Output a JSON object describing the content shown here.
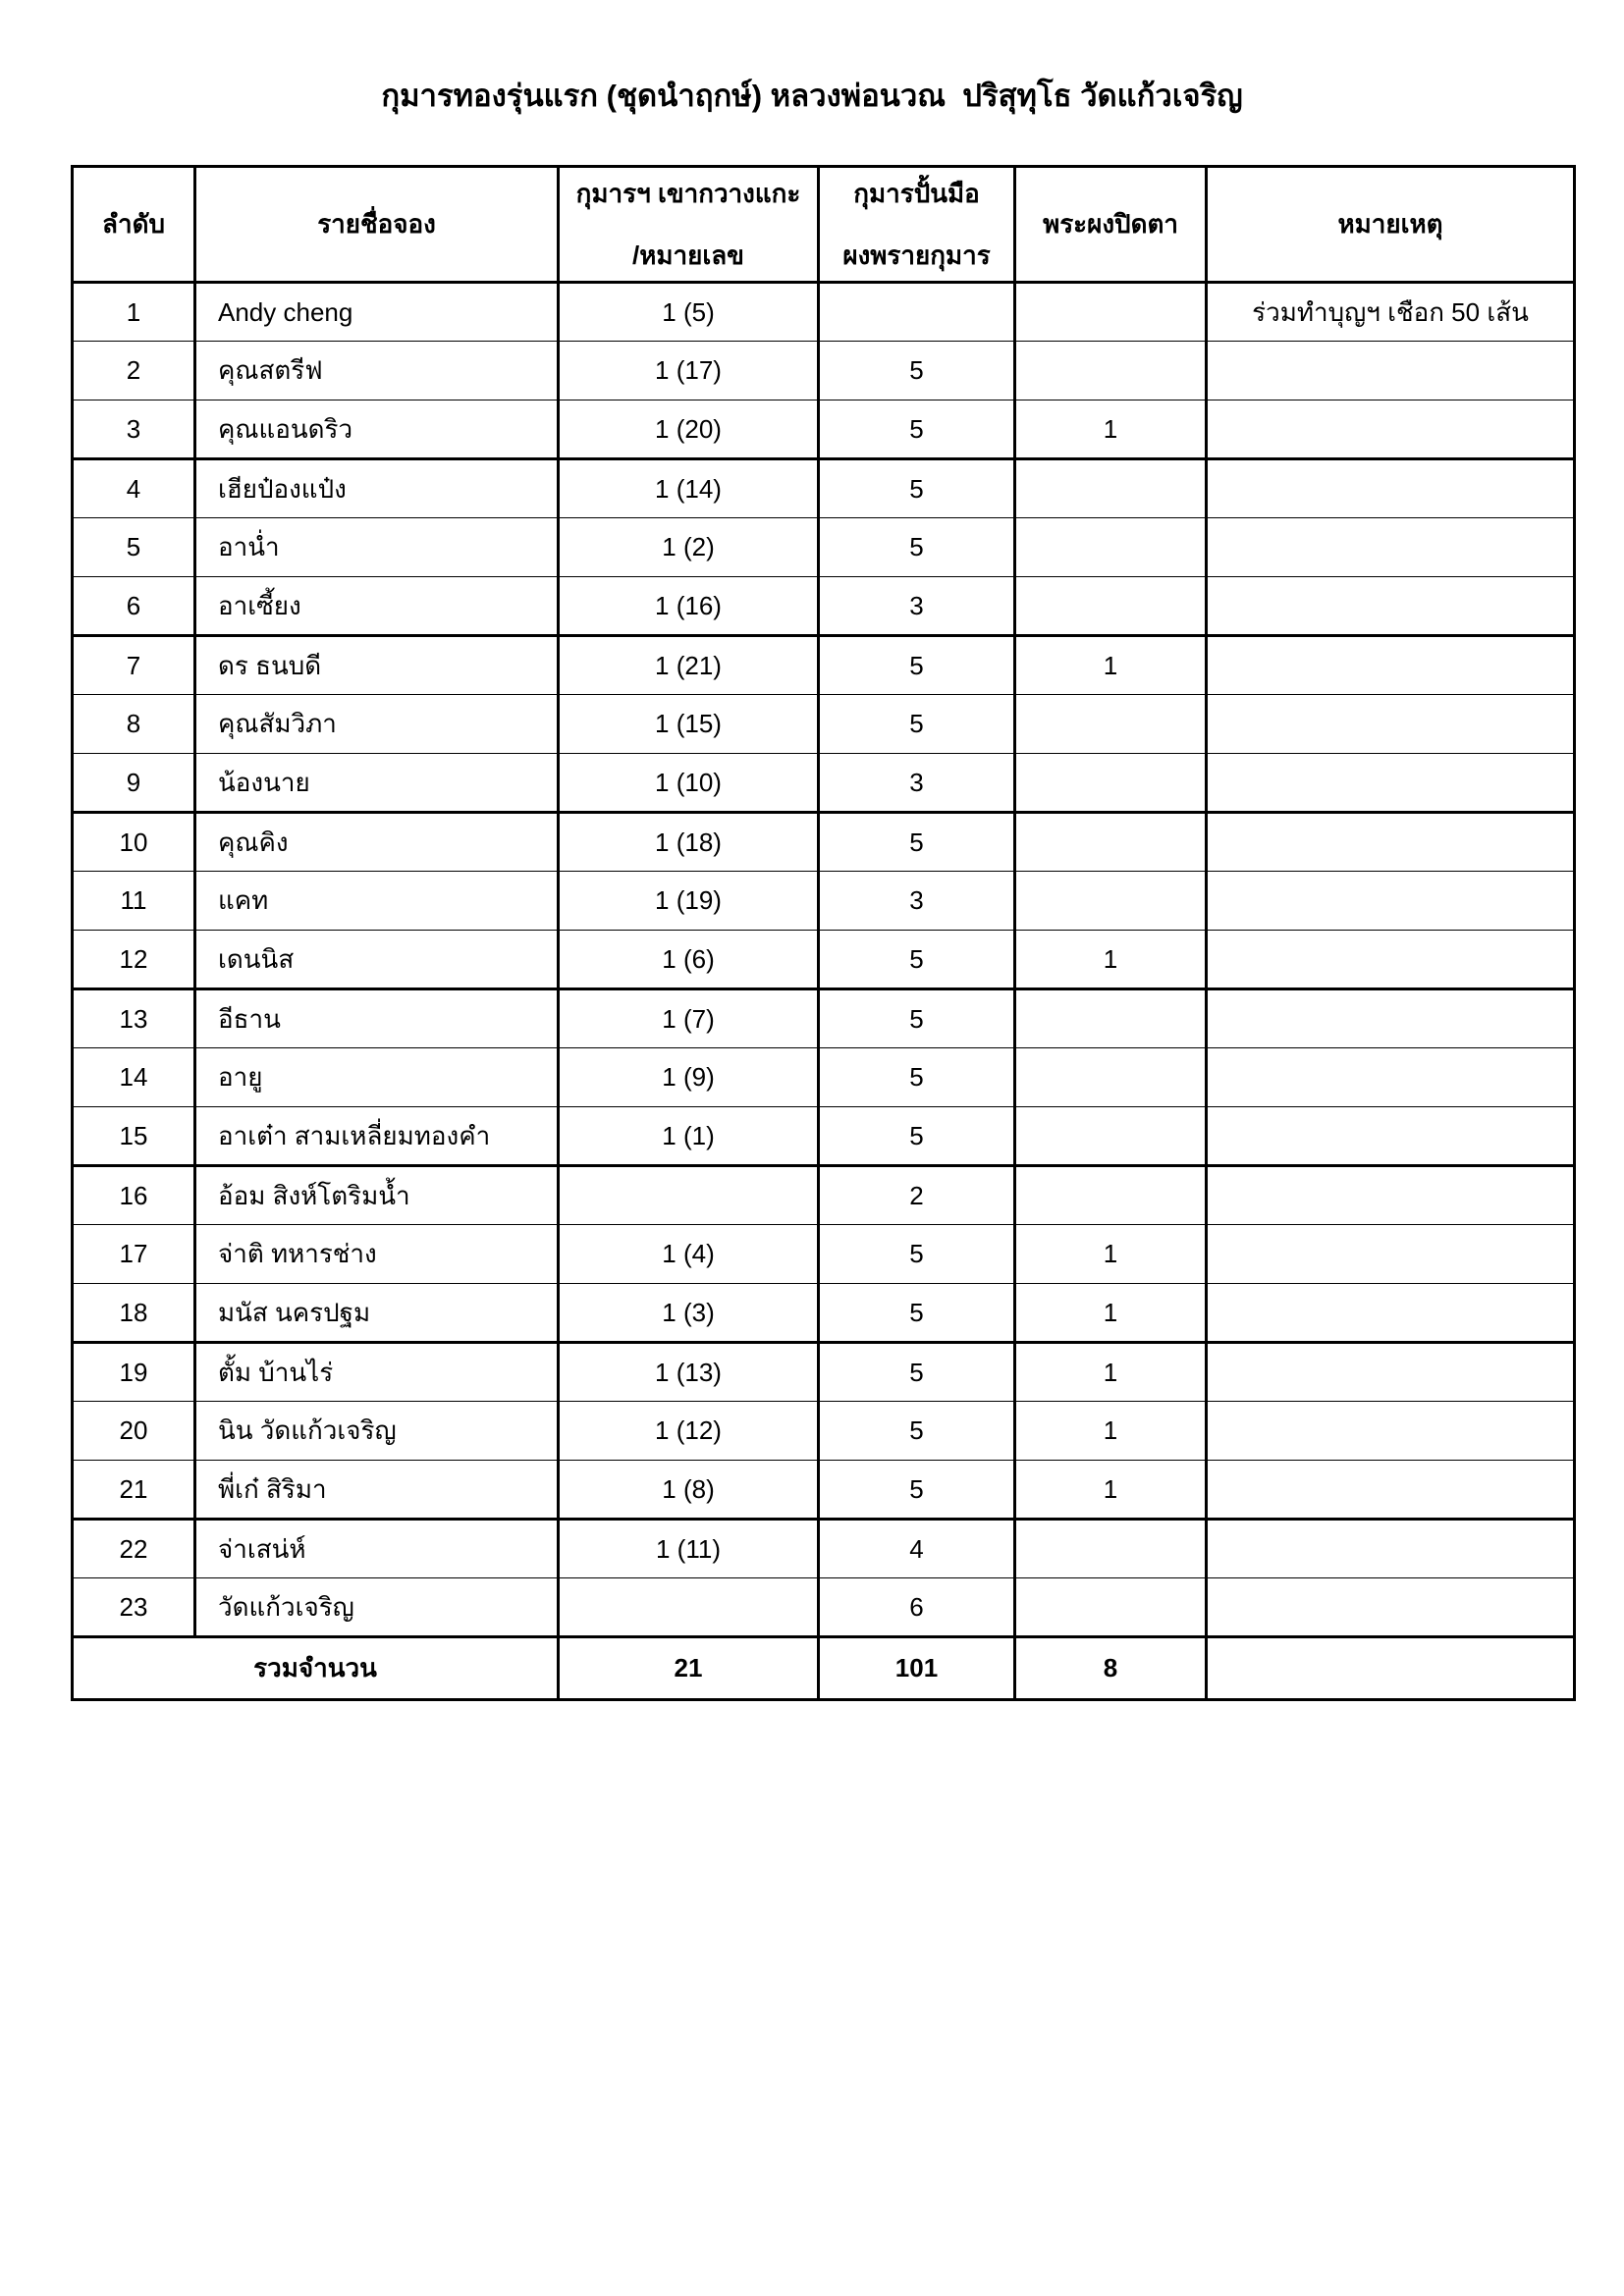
{
  "title": "กุมารทองรุ่นแรก (ชุดนำฤกษ์) หลวงพ่อนวณ  ปริสุทุโธ วัดแก้วเจริญ",
  "table": {
    "headers": {
      "no": "ลำดับ",
      "name": "รายชื่อจอง",
      "carved_line1": "กุมารฯ เขากวางแกะ",
      "carved_line2": "/หมายเลข",
      "handmade_line1": "กุมารปั้นมือ",
      "handmade_line2": "ผงพรายกุมาร",
      "pidta": "พระผงปิดตา",
      "note": "หมายเหตุ"
    },
    "rows": [
      {
        "no": "1",
        "name": "Andy cheng",
        "carved": "1 (5)",
        "handmade": "",
        "pidta": "",
        "note": "ร่วมทำบุญฯ เชือก 50 เส้น"
      },
      {
        "no": "2",
        "name": "คุณสตรีฟ",
        "carved": "1 (17)",
        "handmade": "5",
        "pidta": "",
        "note": ""
      },
      {
        "no": "3",
        "name": "คุณแอนดริว",
        "carved": "1 (20)",
        "handmade": "5",
        "pidta": "1",
        "note": ""
      },
      {
        "no": "4",
        "name": "เฮียป๋องแป๋ง",
        "carved": "1 (14)",
        "handmade": "5",
        "pidta": "",
        "note": ""
      },
      {
        "no": "5",
        "name": "อาน่ำ",
        "carved": "1 (2)",
        "handmade": "5",
        "pidta": "",
        "note": ""
      },
      {
        "no": "6",
        "name": "อาเซี้ยง",
        "carved": "1 (16)",
        "handmade": "3",
        "pidta": "",
        "note": ""
      },
      {
        "no": "7",
        "name": "ดร ธนบดี",
        "carved": "1 (21)",
        "handmade": "5",
        "pidta": "1",
        "note": ""
      },
      {
        "no": "8",
        "name": "คุณสัมวิภา",
        "carved": "1 (15)",
        "handmade": "5",
        "pidta": "",
        "note": ""
      },
      {
        "no": "9",
        "name": "น้องนาย",
        "carved": "1 (10)",
        "handmade": "3",
        "pidta": "",
        "note": ""
      },
      {
        "no": "10",
        "name": "คุณคิง",
        "carved": "1 (18)",
        "handmade": "5",
        "pidta": "",
        "note": ""
      },
      {
        "no": "11",
        "name": "แคท",
        "carved": "1 (19)",
        "handmade": "3",
        "pidta": "",
        "note": ""
      },
      {
        "no": "12",
        "name": "เดนนิส",
        "carved": "1 (6)",
        "handmade": "5",
        "pidta": "1",
        "note": ""
      },
      {
        "no": "13",
        "name": "อีธาน",
        "carved": "1 (7)",
        "handmade": "5",
        "pidta": "",
        "note": ""
      },
      {
        "no": "14",
        "name": "อายู",
        "carved": "1 (9)",
        "handmade": "5",
        "pidta": "",
        "note": ""
      },
      {
        "no": "15",
        "name": "อาเต๋า สามเหลี่ยมทองคำ",
        "carved": "1 (1)",
        "handmade": "5",
        "pidta": "",
        "note": ""
      },
      {
        "no": "16",
        "name": "อ้อม สิงห์โตริมน้ำ",
        "carved": "",
        "handmade": "2",
        "pidta": "",
        "note": ""
      },
      {
        "no": "17",
        "name": "จ่าติ ทหารช่าง",
        "carved": "1 (4)",
        "handmade": "5",
        "pidta": "1",
        "note": ""
      },
      {
        "no": "18",
        "name": "มนัส นครปฐม",
        "carved": "1 (3)",
        "handmade": "5",
        "pidta": "1",
        "note": ""
      },
      {
        "no": "19",
        "name": "ตั้ม บ้านไร่",
        "carved": "1 (13)",
        "handmade": "5",
        "pidta": "1",
        "note": ""
      },
      {
        "no": "20",
        "name": "นิน วัดแก้วเจริญ",
        "carved": "1 (12)",
        "handmade": "5",
        "pidta": "1",
        "note": ""
      },
      {
        "no": "21",
        "name": "พี่เก๋ สิริมา",
        "carved": "1 (8)",
        "handmade": "5",
        "pidta": "1",
        "note": ""
      },
      {
        "no": "22",
        "name": "จ่าเสน่ห์",
        "carved": "1 (11)",
        "handmade": "4",
        "pidta": "",
        "note": ""
      },
      {
        "no": "23",
        "name": "วัดแก้วเจริญ",
        "carved": "",
        "handmade": "6",
        "pidta": "",
        "note": ""
      }
    ],
    "total": {
      "label": "รวมจำนวน",
      "carved": "21",
      "handmade": "101",
      "pidta": "8",
      "note": ""
    }
  }
}
